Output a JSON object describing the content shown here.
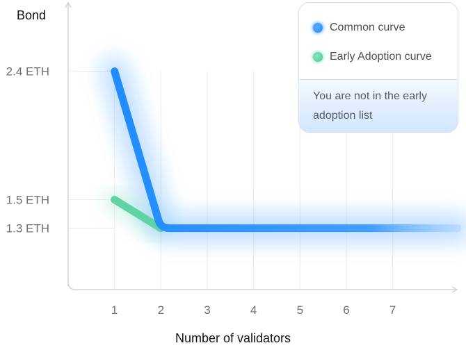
{
  "colors": {
    "common": "#1f8cff",
    "early": "#5fd3a6",
    "axis": "#d4d4d4",
    "grid": "#ececec"
  },
  "legend": {
    "common_label": "Common curve",
    "early_label": "Early Adoption curve",
    "notice": "You are not in the early adoption list"
  },
  "chart_data": {
    "type": "line",
    "title": "",
    "ylabel": "Bond",
    "xlabel": "Number of validators",
    "x_ticks": [
      "1",
      "2",
      "3",
      "4",
      "5",
      "6",
      "7"
    ],
    "y_ticks": [
      {
        "value": 2.4,
        "label": "2.4 ETH"
      },
      {
        "value": 1.5,
        "label": "1.5 ETH"
      },
      {
        "value": 1.3,
        "label": "1.3 ETH"
      }
    ],
    "xlim": [
      0,
      8.4
    ],
    "ylim": [
      0.87,
      2.88
    ],
    "grid": true,
    "legend_position": "top-right",
    "series": [
      {
        "name": "Common curve",
        "key": "common",
        "x": [
          1,
          2,
          8.4
        ],
        "y": [
          2.4,
          1.3,
          1.3
        ]
      },
      {
        "name": "Early Adoption curve",
        "key": "early",
        "x": [
          1,
          2
        ],
        "y": [
          1.5,
          1.3
        ]
      }
    ]
  }
}
